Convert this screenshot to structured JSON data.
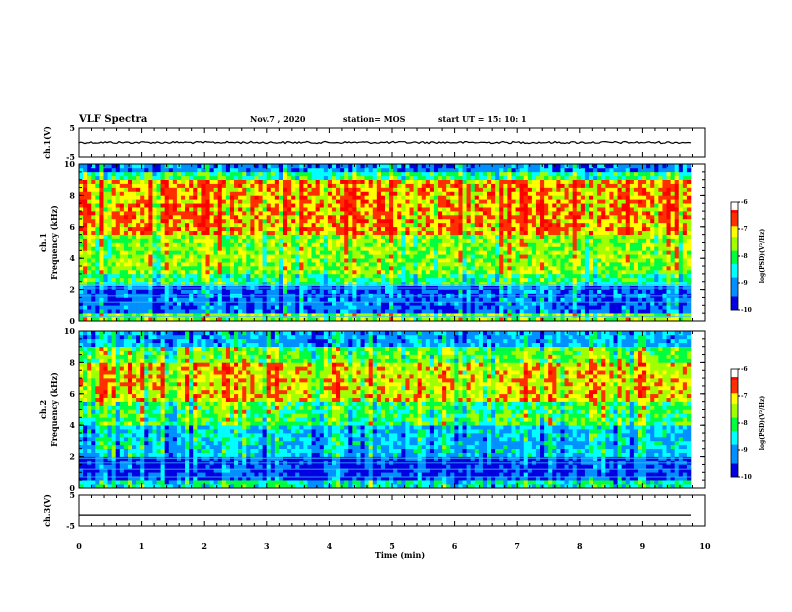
{
  "header": {
    "title": "VLF Spectra",
    "date": "Nov.7 , 2020",
    "station": "station= MOS",
    "start": "start UT = 15: 10: 1"
  },
  "chart_data": [
    {
      "type": "line",
      "ylabel": "ch.1(V)",
      "ylim": [
        -5,
        5
      ],
      "yticks": [
        "5",
        "-5"
      ],
      "x": [
        0,
        10
      ],
      "y": [
        0,
        0
      ]
    },
    {
      "type": "heatmap",
      "ylabel": "ch.1",
      "ylabel2": "Frequency (kHz)",
      "ylim": [
        0,
        10
      ],
      "yticks": [
        "0",
        "2",
        "4",
        "6",
        "8",
        "10"
      ],
      "colorbar": {
        "label": "log(PSD)(V²/Hz)",
        "range": [
          -10,
          -6
        ],
        "ticks": [
          "-6",
          "-7",
          "-8",
          "-9",
          "-10"
        ]
      },
      "description_levels": {
        "low_band_below_2kHz": -10,
        "band_3_to_9kHz": -6.5
      }
    },
    {
      "type": "heatmap",
      "ylabel": "ch.2",
      "ylabel2": "Frequency (kHz)",
      "ylim": [
        0,
        10
      ],
      "yticks": [
        "0",
        "2",
        "4",
        "6",
        "8",
        "10"
      ],
      "colorbar": {
        "label": "log(PSD)(V²/Hz)",
        "range": [
          -10,
          -6
        ],
        "ticks": [
          "-6",
          "-7",
          "-8",
          "-9",
          "-10"
        ]
      },
      "description_levels": {
        "low_band_below_2kHz": -10,
        "band_5_to_8kHz": -7
      }
    },
    {
      "type": "line",
      "ylabel": "ch.3(V)",
      "ylim": [
        -5,
        5
      ],
      "yticks": [
        "5",
        "-5"
      ],
      "x": [
        0,
        10
      ],
      "y": [
        -1.5,
        -1.5
      ]
    }
  ],
  "xaxis": {
    "label": "Time (min)",
    "xlim": [
      0,
      10
    ],
    "ticks": [
      "0",
      "1",
      "2",
      "3",
      "4",
      "5",
      "6",
      "7",
      "8",
      "9",
      "10"
    ]
  },
  "colors": {
    "frame": "#000000",
    "cmap": [
      "#000080",
      "#0000ff",
      "#00ffff",
      "#00ff00",
      "#ffff00",
      "#ff0000",
      "#ffffff"
    ]
  }
}
